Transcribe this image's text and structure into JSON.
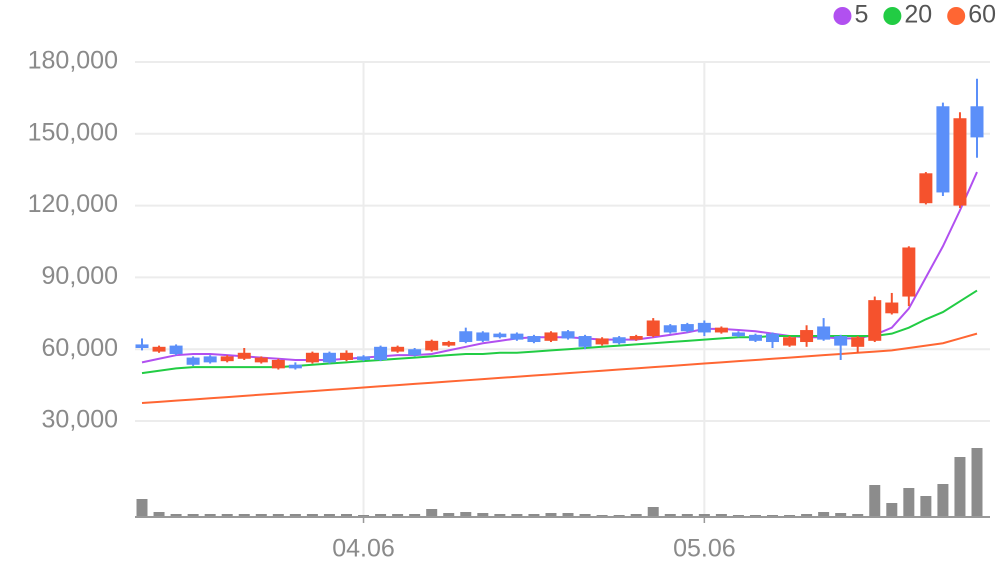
{
  "chart_data": {
    "type": "candlestick",
    "categories": [
      null,
      null,
      null,
      null,
      null,
      null,
      null,
      null,
      null,
      null,
      null,
      null,
      null,
      "04.06",
      null,
      null,
      null,
      null,
      null,
      null,
      null,
      null,
      null,
      null,
      null,
      null,
      null,
      null,
      null,
      null,
      null,
      null,
      null,
      "05.06",
      null,
      null,
      null,
      null,
      null,
      null,
      null,
      null,
      null,
      null,
      null,
      null,
      null,
      null,
      null,
      null
    ],
    "open": [
      62000,
      59000,
      61500,
      56500,
      57000,
      55000,
      56000,
      54500,
      52000,
      53500,
      54500,
      58500,
      55500,
      57000,
      61000,
      59000,
      60000,
      59500,
      61500,
      67500,
      67000,
      66500,
      66500,
      65500,
      63500,
      67500,
      65500,
      62000,
      65000,
      64000,
      65500,
      70000,
      70500,
      71000,
      67000,
      67000,
      66000,
      66500,
      61500,
      63000,
      69500,
      65500,
      61000,
      63500,
      75000,
      82000,
      121000,
      161500,
      120000,
      161500
    ],
    "high": [
      64500,
      61500,
      62000,
      57000,
      57500,
      57500,
      60500,
      57000,
      56000,
      54500,
      59000,
      59000,
      59500,
      57500,
      61500,
      61500,
      60500,
      64000,
      63500,
      69000,
      67500,
      67000,
      67000,
      66000,
      67500,
      68000,
      66000,
      65000,
      65500,
      66000,
      73000,
      70500,
      71000,
      72000,
      69500,
      67500,
      66500,
      67000,
      65500,
      70000,
      73000,
      66000,
      65500,
      82000,
      83500,
      103000,
      134000,
      163000,
      159000,
      173000
    ],
    "low": [
      59500,
      58500,
      57500,
      53000,
      54000,
      54500,
      55500,
      54000,
      51500,
      51500,
      54000,
      54000,
      55000,
      55000,
      55000,
      58500,
      57000,
      59000,
      61000,
      62500,
      63000,
      64500,
      63500,
      62500,
      63000,
      64000,
      60000,
      61500,
      62000,
      63500,
      65000,
      66500,
      67000,
      65500,
      66500,
      65000,
      63000,
      60500,
      61000,
      61000,
      63500,
      55500,
      58500,
      63000,
      74500,
      78000,
      120500,
      124000,
      119000,
      140000
    ],
    "close": [
      60500,
      61000,
      58000,
      53500,
      54500,
      57000,
      58500,
      56500,
      55500,
      52000,
      58500,
      54500,
      58500,
      55500,
      55500,
      61000,
      57500,
      63500,
      63000,
      63000,
      63500,
      65000,
      64000,
      63000,
      67000,
      64500,
      61000,
      64500,
      62500,
      65500,
      72000,
      67000,
      67500,
      67000,
      69000,
      65500,
      63500,
      63000,
      65000,
      68000,
      64000,
      61500,
      65000,
      80500,
      79500,
      102500,
      133500,
      125500,
      156500,
      148500
    ],
    "up_color": "#f5522d",
    "down_color": "#5b8ff9",
    "volume": [
      18,
      5,
      3,
      3,
      3,
      3,
      3,
      3,
      3,
      3,
      3,
      3,
      3,
      2,
      3,
      3,
      3,
      8,
      4,
      5,
      4,
      3,
      3,
      3,
      4,
      4,
      3,
      2,
      2,
      3,
      10,
      3,
      3,
      3,
      3,
      2,
      2,
      2,
      2,
      3,
      5,
      4,
      3,
      32,
      14,
      29,
      21,
      33,
      60,
      69
    ],
    "volume_color": "#8c8c8c",
    "vlim": [
      0,
      70
    ],
    "series": [
      {
        "name": "5",
        "color": "#b150f0",
        "values": [
          54500,
          56000,
          57500,
          58000,
          58000,
          57500,
          57000,
          56500,
          56000,
          55500,
          55500,
          55500,
          56000,
          56500,
          57000,
          57500,
          57500,
          58000,
          59500,
          61000,
          62500,
          63500,
          64500,
          65000,
          65000,
          65000,
          64500,
          64000,
          64000,
          64000,
          65000,
          66000,
          67000,
          68500,
          68500,
          68000,
          67500,
          66500,
          65500,
          65000,
          65000,
          64500,
          64500,
          66000,
          69000,
          77000,
          90000,
          103000,
          118000,
          134000
        ]
      },
      {
        "name": "20",
        "color": "#22cc44",
        "values": [
          50000,
          51000,
          52000,
          52500,
          52500,
          52500,
          52500,
          52500,
          52500,
          53000,
          53500,
          54000,
          54500,
          55000,
          55500,
          56000,
          56500,
          57000,
          57500,
          58000,
          58000,
          58500,
          58500,
          59000,
          59500,
          60000,
          60500,
          61000,
          61500,
          62000,
          62500,
          63000,
          63500,
          64000,
          64500,
          65000,
          65000,
          65500,
          65500,
          65500,
          65500,
          65500,
          65500,
          65500,
          66500,
          69000,
          72500,
          75500,
          80000,
          84500
        ]
      },
      {
        "name": "60",
        "color": "#ff6633",
        "values": [
          37500,
          38000,
          38500,
          39000,
          39500,
          40000,
          40500,
          41000,
          41500,
          42000,
          42500,
          43000,
          43500,
          44000,
          44500,
          45000,
          45500,
          46000,
          46500,
          47000,
          47500,
          48000,
          48500,
          49000,
          49500,
          50000,
          50500,
          51000,
          51500,
          52000,
          52500,
          53000,
          53500,
          54000,
          54500,
          55000,
          55500,
          56000,
          56500,
          57000,
          57500,
          58000,
          58500,
          59000,
          59500,
          60500,
          61500,
          62500,
          64500,
          66500
        ]
      }
    ],
    "ylim": [
      30000,
      180000
    ],
    "yticks": [
      {
        "value": 30000,
        "label": "30,000"
      },
      {
        "value": 60000,
        "label": "60,000"
      },
      {
        "value": 90000,
        "label": "90,000"
      },
      {
        "value": 120000,
        "label": "120,000"
      },
      {
        "value": 150000,
        "label": "150,000"
      },
      {
        "value": 180000,
        "label": "180,000"
      }
    ],
    "grid": true
  }
}
